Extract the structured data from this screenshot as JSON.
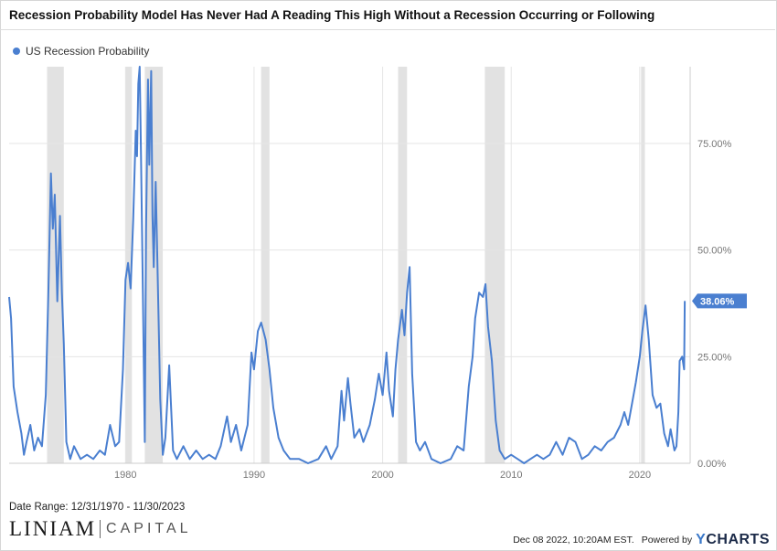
{
  "title": "Recession Probability Model Has Never Had A Reading This High Without a Recession Occurring or Following",
  "legend_label": "US Recession Probability",
  "date_range": "Date Range: 12/31/1970 - 11/30/2023",
  "logo": {
    "main": "LINIAM",
    "sub": "CAPITAL"
  },
  "footer": {
    "timestamp": "Dec 08 2022, 10:20AM EST.",
    "powered_by": "Powered by",
    "brand_y": "Y",
    "brand_rest": "CHARTS"
  },
  "colors": {
    "line": "#4a7fd0",
    "recession": "#e2e2e2",
    "grid": "#e5e5e5",
    "axis_text": "#777777"
  },
  "chart_data": {
    "type": "line",
    "title": "Recession Probability Model Has Never Had A Reading This High Without a Recession Occurring or Following",
    "xlabel": "",
    "ylabel": "",
    "xlim": [
      1970.95,
      2023.92
    ],
    "ylim": [
      0,
      93
    ],
    "x_ticks": [
      1980,
      1990,
      2000,
      2010,
      2020
    ],
    "x_tick_labels": [
      "1980",
      "1990",
      "2000",
      "2010",
      "2020"
    ],
    "y_ticks": [
      0,
      25,
      50,
      75
    ],
    "y_tick_labels": [
      "0.00%",
      "25.00%",
      "50.00%",
      "75.00%"
    ],
    "grid": true,
    "legend_position": "top-left",
    "last_value_label": "38.06%",
    "recession_periods": [
      [
        1973.9,
        1975.2
      ],
      [
        1980.0,
        1980.5
      ],
      [
        1981.5,
        1982.9
      ],
      [
        1990.55,
        1991.2
      ],
      [
        2001.2,
        2001.9
      ],
      [
        2007.95,
        2009.5
      ],
      [
        2020.1,
        2020.4
      ]
    ],
    "series": [
      {
        "name": "US Recession Probability",
        "points": [
          [
            1970.95,
            39
          ],
          [
            1971.1,
            34
          ],
          [
            1971.3,
            18
          ],
          [
            1971.6,
            12
          ],
          [
            1971.9,
            7
          ],
          [
            1972.1,
            2
          ],
          [
            1972.3,
            5
          ],
          [
            1972.6,
            9
          ],
          [
            1972.9,
            3
          ],
          [
            1973.2,
            6
          ],
          [
            1973.5,
            4
          ],
          [
            1973.8,
            16
          ],
          [
            1974.0,
            40
          ],
          [
            1974.2,
            68
          ],
          [
            1974.35,
            55
          ],
          [
            1974.5,
            63
          ],
          [
            1974.7,
            38
          ],
          [
            1974.9,
            58
          ],
          [
            1975.05,
            40
          ],
          [
            1975.2,
            28
          ],
          [
            1975.4,
            5
          ],
          [
            1975.7,
            1
          ],
          [
            1976.0,
            4
          ],
          [
            1976.5,
            1
          ],
          [
            1977.0,
            2
          ],
          [
            1977.5,
            1
          ],
          [
            1978.0,
            3
          ],
          [
            1978.4,
            2
          ],
          [
            1978.8,
            9
          ],
          [
            1979.2,
            4
          ],
          [
            1979.5,
            5
          ],
          [
            1979.8,
            22
          ],
          [
            1980.0,
            43
          ],
          [
            1980.2,
            47
          ],
          [
            1980.4,
            41
          ],
          [
            1980.6,
            57
          ],
          [
            1980.8,
            78
          ],
          [
            1980.9,
            72
          ],
          [
            1981.0,
            89
          ],
          [
            1981.1,
            93
          ],
          [
            1981.2,
            73
          ],
          [
            1981.35,
            40
          ],
          [
            1981.5,
            5
          ],
          [
            1981.6,
            55
          ],
          [
            1981.75,
            90
          ],
          [
            1981.85,
            70
          ],
          [
            1982.0,
            92
          ],
          [
            1982.1,
            58
          ],
          [
            1982.2,
            46
          ],
          [
            1982.35,
            66
          ],
          [
            1982.5,
            45
          ],
          [
            1982.7,
            15
          ],
          [
            1982.9,
            2
          ],
          [
            1983.1,
            6
          ],
          [
            1983.4,
            23
          ],
          [
            1983.7,
            3
          ],
          [
            1984.0,
            1
          ],
          [
            1984.5,
            4
          ],
          [
            1985.0,
            1
          ],
          [
            1985.5,
            3
          ],
          [
            1986.0,
            1
          ],
          [
            1986.5,
            2
          ],
          [
            1987.0,
            1
          ],
          [
            1987.4,
            4
          ],
          [
            1987.9,
            11
          ],
          [
            1988.2,
            5
          ],
          [
            1988.6,
            9
          ],
          [
            1989.0,
            3
          ],
          [
            1989.5,
            9
          ],
          [
            1989.8,
            26
          ],
          [
            1990.0,
            22
          ],
          [
            1990.3,
            31
          ],
          [
            1990.55,
            33
          ],
          [
            1990.9,
            29
          ],
          [
            1991.2,
            22
          ],
          [
            1991.5,
            13
          ],
          [
            1991.9,
            6
          ],
          [
            1992.3,
            3
          ],
          [
            1992.8,
            1
          ],
          [
            1993.5,
            1
          ],
          [
            1994.2,
            0
          ],
          [
            1995.0,
            1
          ],
          [
            1995.6,
            4
          ],
          [
            1996.0,
            1
          ],
          [
            1996.5,
            4
          ],
          [
            1996.8,
            17
          ],
          [
            1997.0,
            10
          ],
          [
            1997.3,
            20
          ],
          [
            1997.5,
            14
          ],
          [
            1997.8,
            6
          ],
          [
            1998.2,
            8
          ],
          [
            1998.5,
            5
          ],
          [
            1999.0,
            9
          ],
          [
            1999.4,
            15
          ],
          [
            1999.7,
            21
          ],
          [
            2000.0,
            16
          ],
          [
            2000.3,
            26
          ],
          [
            2000.5,
            17
          ],
          [
            2000.8,
            11
          ],
          [
            2001.0,
            22
          ],
          [
            2001.2,
            29
          ],
          [
            2001.5,
            36
          ],
          [
            2001.7,
            30
          ],
          [
            2001.9,
            40
          ],
          [
            2002.1,
            46
          ],
          [
            2002.3,
            21
          ],
          [
            2002.6,
            5
          ],
          [
            2002.9,
            3
          ],
          [
            2003.3,
            5
          ],
          [
            2003.8,
            1
          ],
          [
            2004.5,
            0
          ],
          [
            2005.3,
            1
          ],
          [
            2005.8,
            4
          ],
          [
            2006.3,
            3
          ],
          [
            2006.7,
            18
          ],
          [
            2007.0,
            25
          ],
          [
            2007.2,
            34
          ],
          [
            2007.5,
            40
          ],
          [
            2007.8,
            39
          ],
          [
            2008.0,
            42
          ],
          [
            2008.2,
            32
          ],
          [
            2008.5,
            24
          ],
          [
            2008.8,
            10
          ],
          [
            2009.1,
            3
          ],
          [
            2009.5,
            1
          ],
          [
            2010.0,
            2
          ],
          [
            2010.5,
            1
          ],
          [
            2011.0,
            0
          ],
          [
            2011.5,
            1
          ],
          [
            2012.0,
            2
          ],
          [
            2012.5,
            1
          ],
          [
            2013.0,
            2
          ],
          [
            2013.5,
            5
          ],
          [
            2014.0,
            2
          ],
          [
            2014.5,
            6
          ],
          [
            2015.0,
            5
          ],
          [
            2015.5,
            1
          ],
          [
            2016.0,
            2
          ],
          [
            2016.5,
            4
          ],
          [
            2017.0,
            3
          ],
          [
            2017.5,
            5
          ],
          [
            2018.0,
            6
          ],
          [
            2018.5,
            9
          ],
          [
            2018.8,
            12
          ],
          [
            2019.1,
            9
          ],
          [
            2019.4,
            14
          ],
          [
            2019.7,
            19
          ],
          [
            2020.0,
            25
          ],
          [
            2020.2,
            31
          ],
          [
            2020.45,
            37
          ],
          [
            2020.7,
            29
          ],
          [
            2021.0,
            16
          ],
          [
            2021.3,
            13
          ],
          [
            2021.6,
            14
          ],
          [
            2021.9,
            7
          ],
          [
            2022.2,
            4
          ],
          [
            2022.4,
            8
          ],
          [
            2022.7,
            3
          ],
          [
            2022.85,
            4
          ],
          [
            2023.0,
            12
          ],
          [
            2023.1,
            24
          ],
          [
            2023.3,
            25
          ],
          [
            2023.45,
            22
          ],
          [
            2023.5,
            38.06
          ]
        ]
      }
    ]
  }
}
